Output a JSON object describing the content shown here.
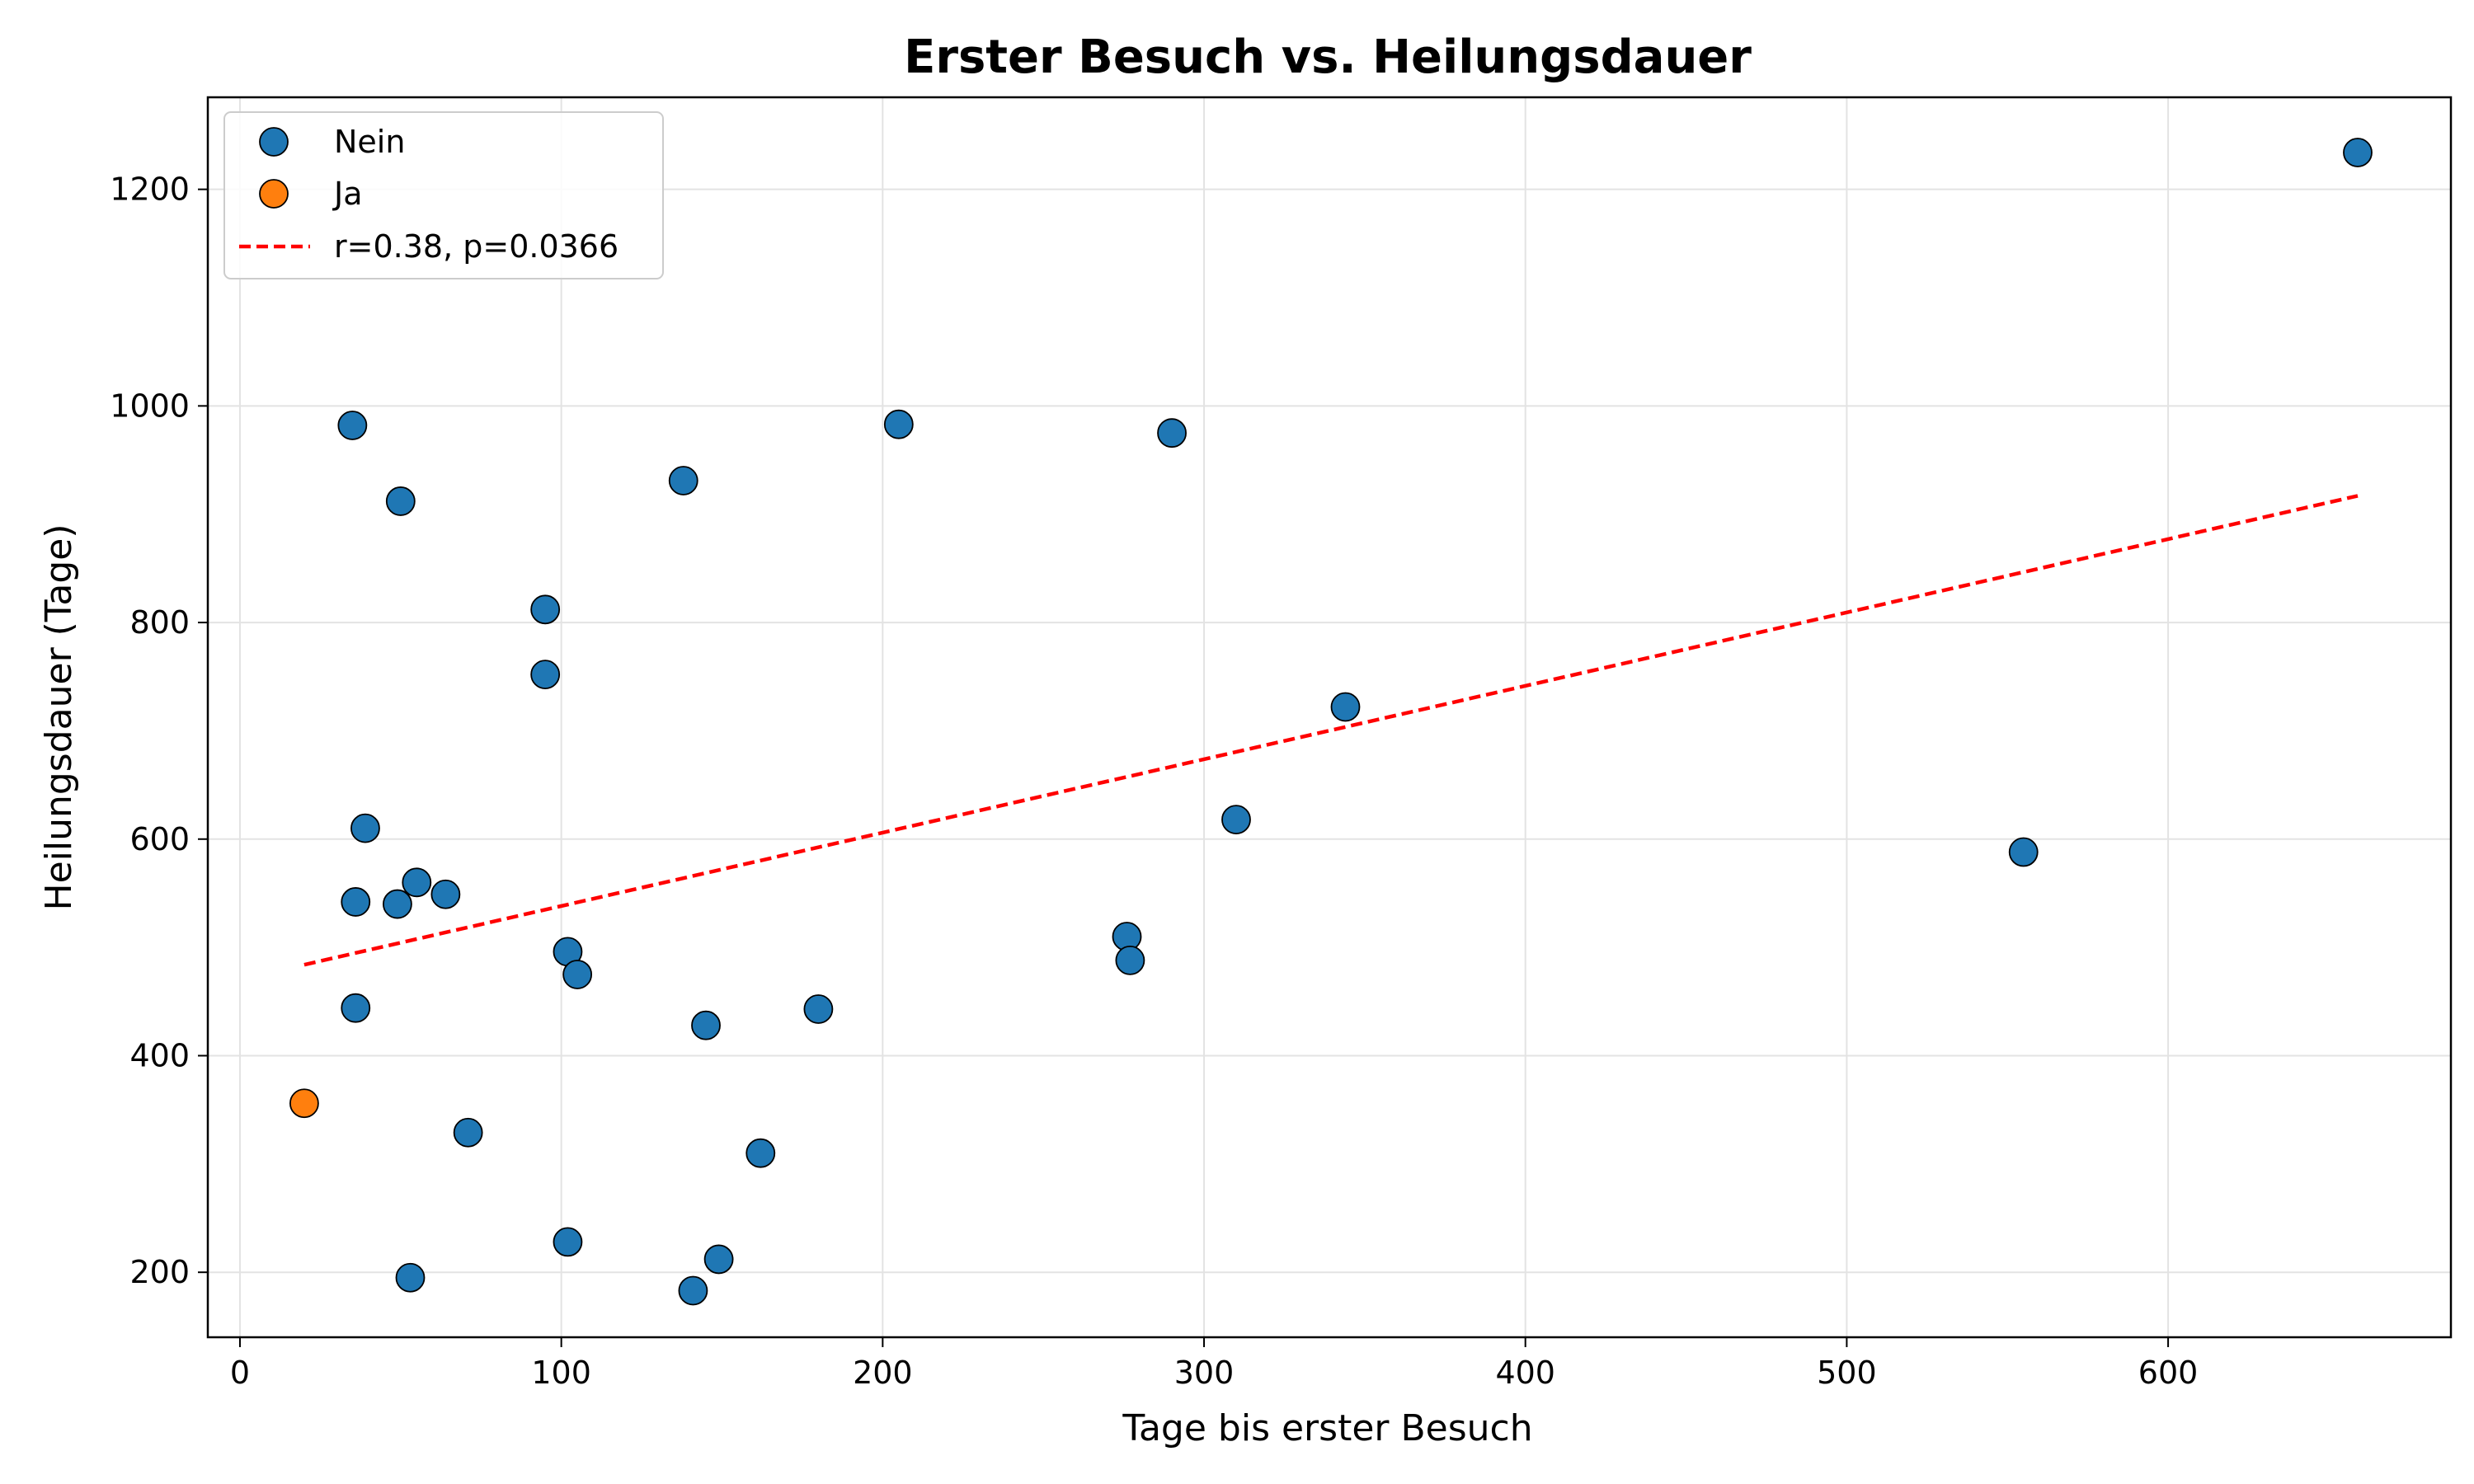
{
  "chart_data": {
    "type": "scatter",
    "title": "Erster Besuch vs. Heilungsdauer",
    "xlabel": "Tage bis erster Besuch",
    "ylabel": "Heilungsdauer (Tage)",
    "xlim": [
      -10,
      688
    ],
    "ylim": [
      140,
      1285
    ],
    "xticks": [
      0,
      100,
      200,
      300,
      400,
      500,
      600
    ],
    "yticks": [
      200,
      400,
      600,
      800,
      1000,
      1200
    ],
    "grid": true,
    "legend_position": "top-left",
    "series": [
      {
        "name": "Nein",
        "color": "#1f77b4",
        "points": [
          {
            "x": 35,
            "y": 982
          },
          {
            "x": 50,
            "y": 912
          },
          {
            "x": 138,
            "y": 931
          },
          {
            "x": 205,
            "y": 983
          },
          {
            "x": 290,
            "y": 975
          },
          {
            "x": 659,
            "y": 1234
          },
          {
            "x": 95,
            "y": 812
          },
          {
            "x": 95,
            "y": 752
          },
          {
            "x": 344,
            "y": 722
          },
          {
            "x": 39,
            "y": 610
          },
          {
            "x": 310,
            "y": 618
          },
          {
            "x": 555,
            "y": 588
          },
          {
            "x": 36,
            "y": 542
          },
          {
            "x": 49,
            "y": 540
          },
          {
            "x": 55,
            "y": 560
          },
          {
            "x": 64,
            "y": 549
          },
          {
            "x": 102,
            "y": 496
          },
          {
            "x": 105,
            "y": 475
          },
          {
            "x": 276,
            "y": 510
          },
          {
            "x": 277,
            "y": 488
          },
          {
            "x": 36,
            "y": 444
          },
          {
            "x": 145,
            "y": 428
          },
          {
            "x": 180,
            "y": 443
          },
          {
            "x": 71,
            "y": 329
          },
          {
            "x": 162,
            "y": 310
          },
          {
            "x": 102,
            "y": 228
          },
          {
            "x": 149,
            "y": 212
          },
          {
            "x": 53,
            "y": 195
          },
          {
            "x": 141,
            "y": 183
          }
        ]
      },
      {
        "name": "Ja",
        "color": "#ff7f0e",
        "points": [
          {
            "x": 20,
            "y": 356
          }
        ]
      }
    ],
    "trendline": {
      "label": "r=0.38, p=0.0366",
      "color": "#ff0000",
      "x": [
        20,
        659
      ],
      "y": [
        484,
        917
      ]
    }
  }
}
